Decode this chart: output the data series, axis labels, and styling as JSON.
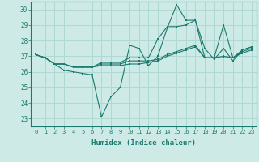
{
  "xlabel": "Humidex (Indice chaleur)",
  "xlim": [
    -0.5,
    23.5
  ],
  "ylim": [
    22.5,
    30.5
  ],
  "yticks": [
    23,
    24,
    25,
    26,
    27,
    28,
    29,
    30
  ],
  "xticks": [
    0,
    1,
    2,
    3,
    4,
    5,
    6,
    7,
    8,
    9,
    10,
    11,
    12,
    13,
    14,
    15,
    16,
    17,
    18,
    19,
    20,
    21,
    22,
    23
  ],
  "bg_color": "#ceeae6",
  "grid_color": "#b0d8d2",
  "line_color": "#1a7a6e",
  "series": [
    [
      27.1,
      26.9,
      26.5,
      26.1,
      26.0,
      25.9,
      25.8,
      23.1,
      24.4,
      25.0,
      27.7,
      27.5,
      26.4,
      27.0,
      28.8,
      30.3,
      29.3,
      29.3,
      27.5,
      26.8,
      27.5,
      26.7,
      27.4,
      27.6
    ],
    [
      27.1,
      26.9,
      26.5,
      26.5,
      26.3,
      26.3,
      26.3,
      26.4,
      26.4,
      26.4,
      26.5,
      26.5,
      26.6,
      26.7,
      27.0,
      27.2,
      27.4,
      27.6,
      26.9,
      26.9,
      26.9,
      26.9,
      27.2,
      27.4
    ],
    [
      27.1,
      26.9,
      26.5,
      26.5,
      26.3,
      26.3,
      26.3,
      26.5,
      26.5,
      26.5,
      26.7,
      26.7,
      26.7,
      26.8,
      27.1,
      27.3,
      27.5,
      27.7,
      26.9,
      26.9,
      27.0,
      26.9,
      27.3,
      27.5
    ],
    [
      27.1,
      26.9,
      26.5,
      26.5,
      26.3,
      26.3,
      26.3,
      26.6,
      26.6,
      26.6,
      26.9,
      26.9,
      26.9,
      28.1,
      28.9,
      28.9,
      29.0,
      29.3,
      26.9,
      26.9,
      29.0,
      26.9,
      27.4,
      27.6
    ]
  ]
}
